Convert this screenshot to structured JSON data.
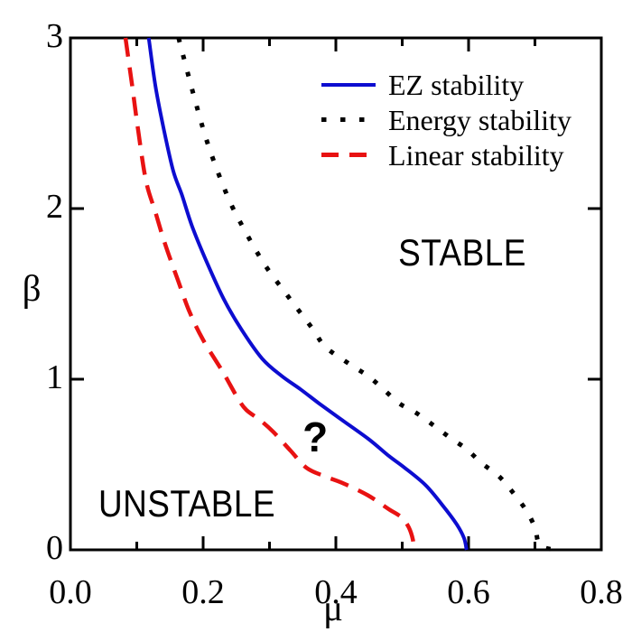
{
  "chart_data": {
    "type": "line",
    "title": "",
    "xlabel": "μ",
    "ylabel": "β",
    "xlim": [
      0.0,
      0.8
    ],
    "ylim": [
      0,
      3
    ],
    "grid": false,
    "axis_color": "#000000",
    "background": "#ffffff",
    "x_tick_labels": [
      {
        "value": 0.0,
        "label": "0.0"
      },
      {
        "value": 0.2,
        "label": "0.2"
      },
      {
        "value": 0.4,
        "label": "0.4"
      },
      {
        "value": 0.6,
        "label": "0.6"
      },
      {
        "value": 0.8,
        "label": "0.8"
      }
    ],
    "x_major_ticks": [
      0.2,
      0.4,
      0.6
    ],
    "x_minor_ticks": [
      0.1,
      0.3,
      0.5,
      0.7
    ],
    "y_tick_labels": [
      {
        "value": 0,
        "label": "0"
      },
      {
        "value": 1,
        "label": "1"
      },
      {
        "value": 2,
        "label": "2"
      },
      {
        "value": 3,
        "label": "3"
      }
    ],
    "y_major_ticks": [
      1,
      2
    ],
    "series": [
      {
        "name": "EZ stability",
        "style": "solid",
        "color": "#0d0dd0",
        "points": [
          [
            0.118,
            3.0
          ],
          [
            0.128,
            2.72
          ],
          [
            0.141,
            2.46
          ],
          [
            0.155,
            2.22
          ],
          [
            0.168,
            2.08
          ],
          [
            0.183,
            1.9
          ],
          [
            0.205,
            1.69
          ],
          [
            0.231,
            1.47
          ],
          [
            0.258,
            1.29
          ],
          [
            0.289,
            1.12
          ],
          [
            0.318,
            1.02
          ],
          [
            0.347,
            0.94
          ],
          [
            0.374,
            0.86
          ],
          [
            0.406,
            0.77
          ],
          [
            0.449,
            0.65
          ],
          [
            0.48,
            0.55
          ],
          [
            0.504,
            0.48
          ],
          [
            0.535,
            0.38
          ],
          [
            0.561,
            0.26
          ],
          [
            0.582,
            0.15
          ],
          [
            0.593,
            0.07
          ],
          [
            0.597,
            0.0
          ]
        ]
      },
      {
        "name": "Energy stability",
        "style": "dotted",
        "color": "#000000",
        "points": [
          [
            0.163,
            3.0
          ],
          [
            0.184,
            2.69
          ],
          [
            0.207,
            2.38
          ],
          [
            0.237,
            2.07
          ],
          [
            0.263,
            1.87
          ],
          [
            0.293,
            1.67
          ],
          [
            0.329,
            1.48
          ],
          [
            0.366,
            1.29
          ],
          [
            0.384,
            1.19
          ],
          [
            0.42,
            1.09
          ],
          [
            0.448,
            1.02
          ],
          [
            0.472,
            0.94
          ],
          [
            0.495,
            0.86
          ],
          [
            0.522,
            0.8
          ],
          [
            0.547,
            0.73
          ],
          [
            0.571,
            0.66
          ],
          [
            0.597,
            0.59
          ],
          [
            0.619,
            0.51
          ],
          [
            0.646,
            0.43
          ],
          [
            0.668,
            0.33
          ],
          [
            0.687,
            0.23
          ],
          [
            0.7,
            0.13
          ],
          [
            0.707,
            0.03
          ],
          [
            0.728,
            0.0
          ]
        ]
      },
      {
        "name": "Linear stability",
        "style": "dashed",
        "color": "#e81212",
        "points": [
          [
            0.083,
            3.0
          ],
          [
            0.093,
            2.72
          ],
          [
            0.102,
            2.46
          ],
          [
            0.114,
            2.16
          ],
          [
            0.128,
            1.98
          ],
          [
            0.142,
            1.8
          ],
          [
            0.162,
            1.58
          ],
          [
            0.18,
            1.39
          ],
          [
            0.2,
            1.23
          ],
          [
            0.23,
            1.04
          ],
          [
            0.252,
            0.89
          ],
          [
            0.265,
            0.82
          ],
          [
            0.286,
            0.76
          ],
          [
            0.306,
            0.69
          ],
          [
            0.332,
            0.58
          ],
          [
            0.356,
            0.48
          ],
          [
            0.384,
            0.43
          ],
          [
            0.411,
            0.39
          ],
          [
            0.448,
            0.32
          ],
          [
            0.479,
            0.24
          ],
          [
            0.499,
            0.19
          ],
          [
            0.51,
            0.13
          ],
          [
            0.516,
            0.06
          ],
          [
            0.517,
            0.0
          ]
        ]
      }
    ],
    "legend": {
      "position": "upper-right-inside",
      "items": [
        {
          "label": "EZ stability",
          "style": "solid",
          "color": "#0d0dd0"
        },
        {
          "label": "Energy stability",
          "style": "dotted",
          "color": "#000000"
        },
        {
          "label": "Linear stability",
          "style": "dashed",
          "color": "#e81212"
        }
      ]
    },
    "annotations": [
      {
        "text": "STABLE",
        "mu": 0.59,
        "beta": 1.74
      },
      {
        "text": "UNSTABLE",
        "mu": 0.175,
        "beta": 0.27
      },
      {
        "text": "?",
        "mu": 0.369,
        "beta": 0.66
      }
    ]
  }
}
